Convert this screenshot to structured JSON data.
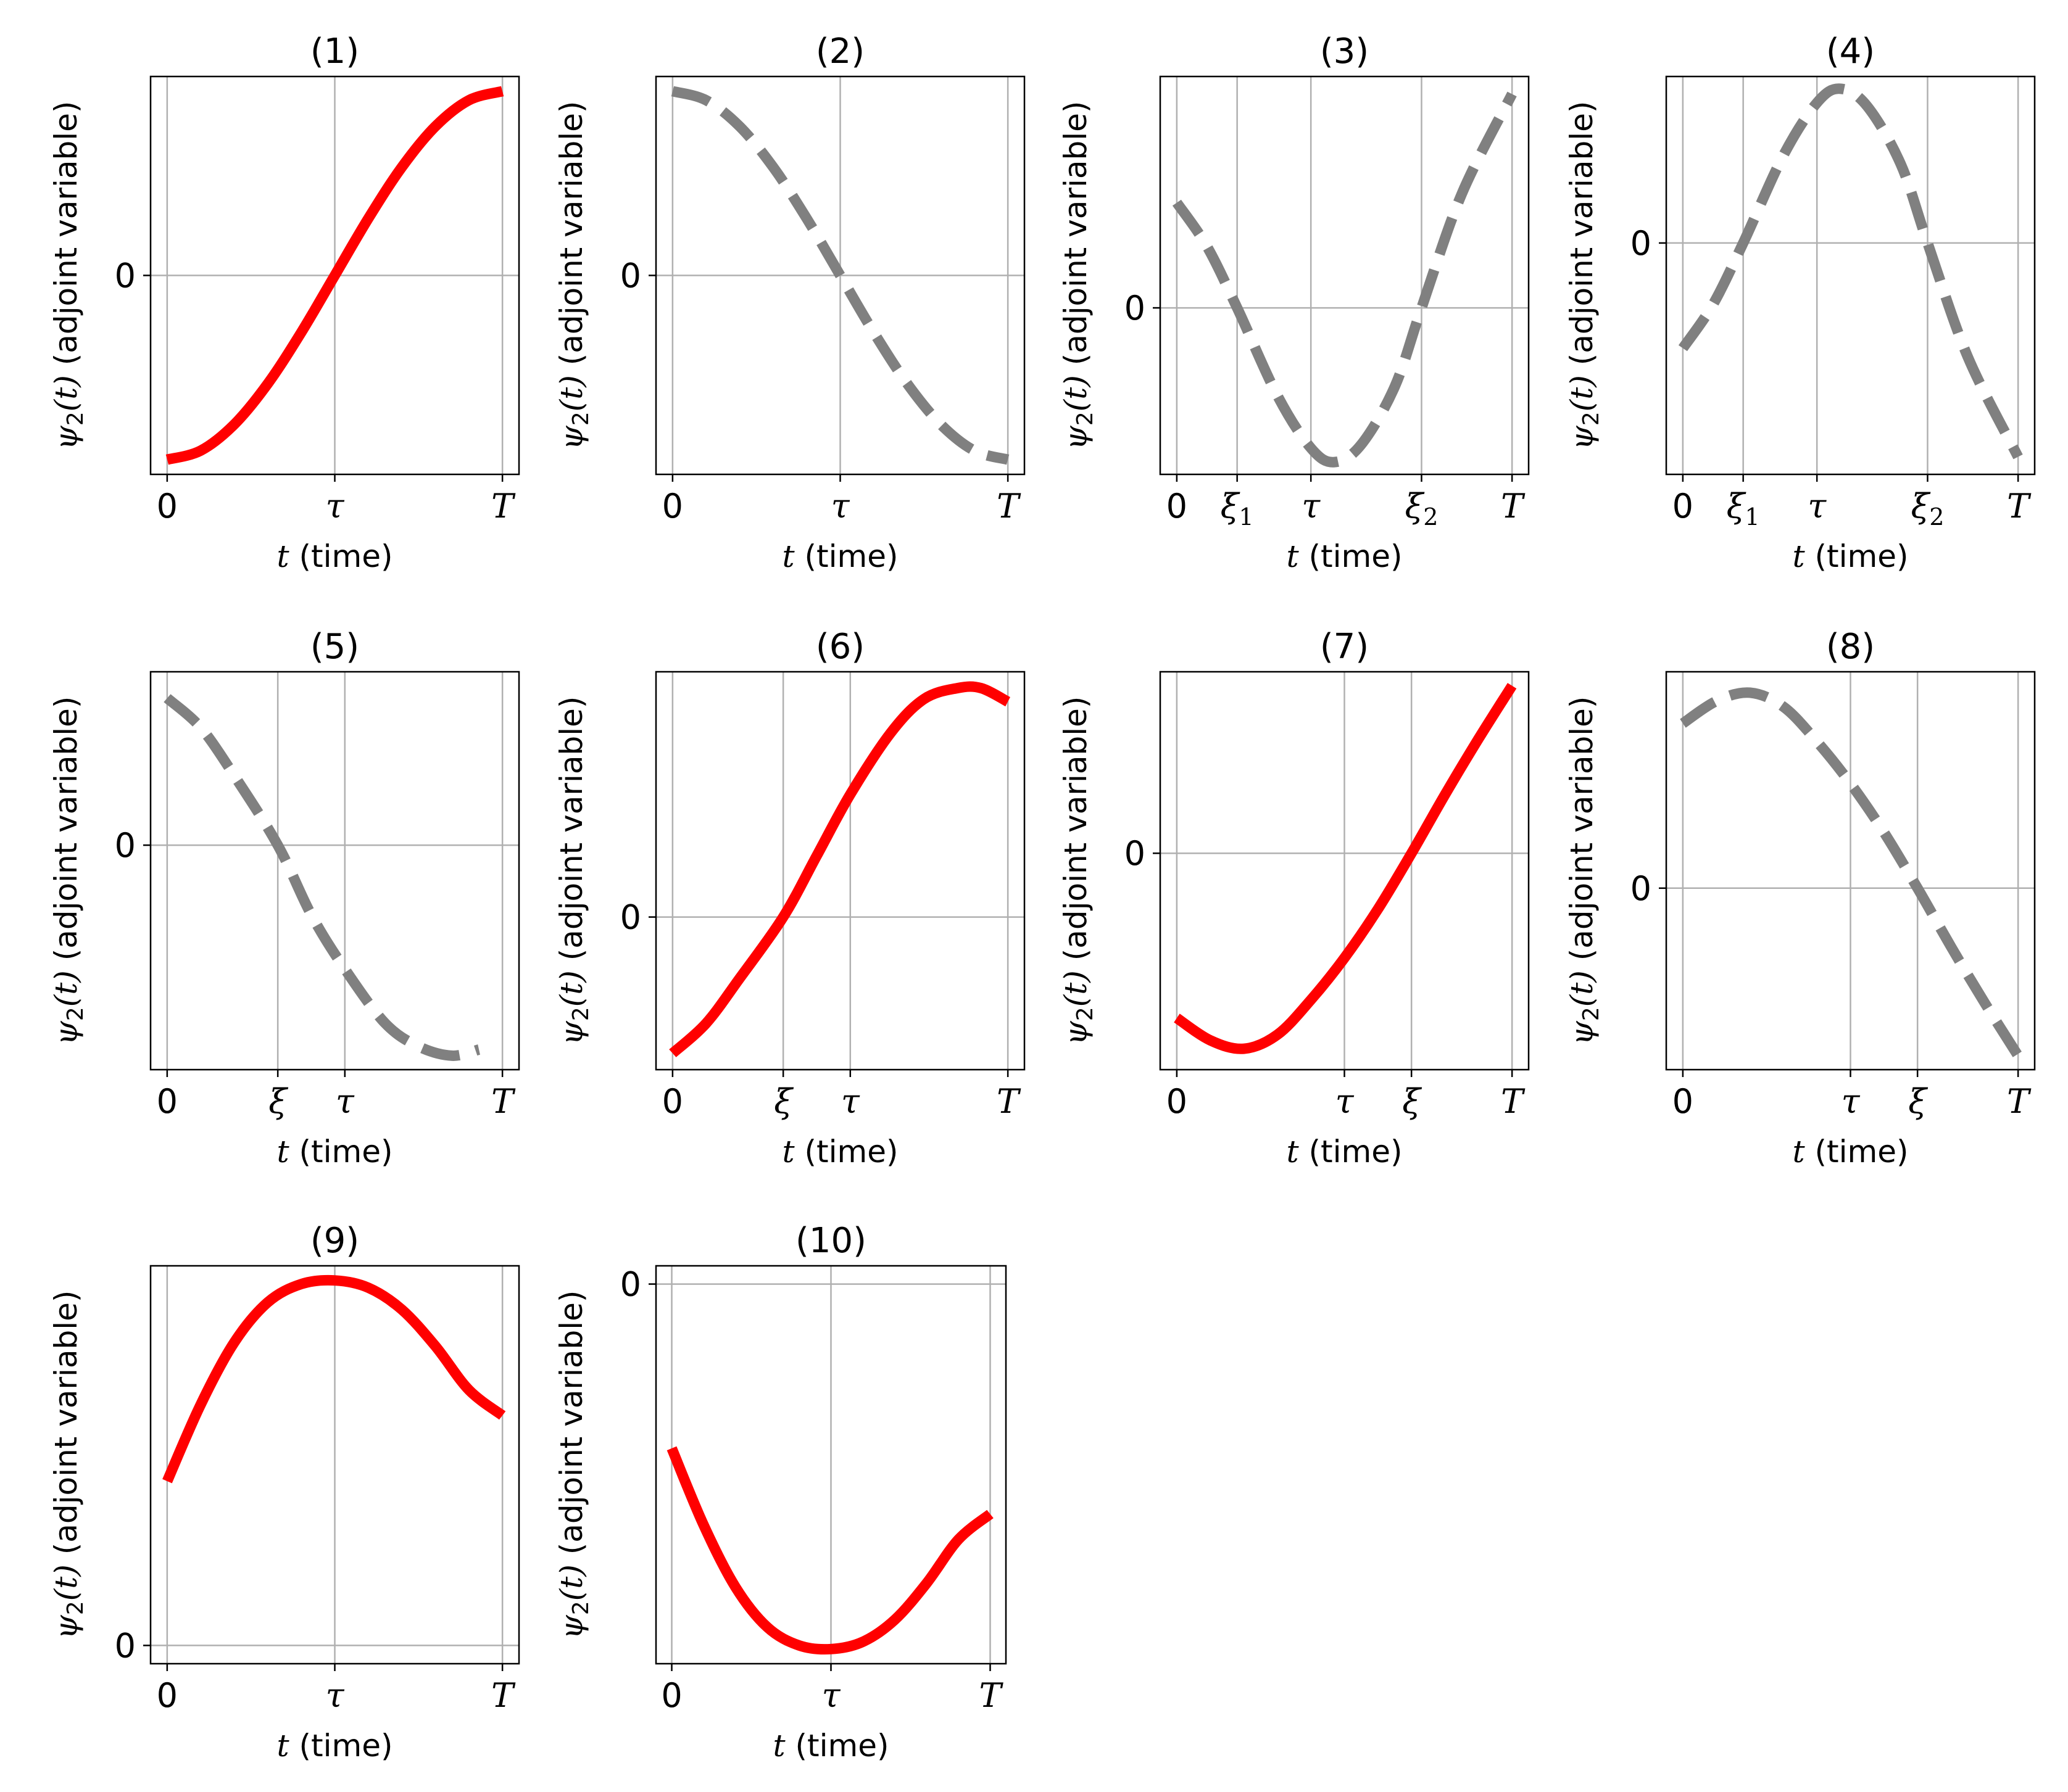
{
  "figure": {
    "colors": {
      "solid": "#ff0000",
      "dashed": "#808080",
      "grid": "#b0b0b0",
      "axis": "#000000"
    }
  },
  "labels": {
    "xlabel_var": "t",
    "xlabel_rest": " (time)",
    "ylabel_var": "ψ",
    "ylabel_sub": "2",
    "ylabel_arg": "(t)",
    "ylabel_rest": " (adjoint variable)"
  },
  "chart_data": [
    {
      "title": "(1)",
      "type": "line",
      "style": "solid",
      "xticks": [
        {
          "x": 0,
          "label": "0"
        },
        {
          "x": 0.5,
          "label": "τ"
        },
        {
          "x": 1,
          "label": "T"
        }
      ],
      "yzero": true,
      "ylim": [
        -1.08,
        1.08
      ],
      "points": [
        [
          0,
          -1
        ],
        [
          0.1,
          -0.951
        ],
        [
          0.2,
          -0.809
        ],
        [
          0.3,
          -0.588
        ],
        [
          0.4,
          -0.309
        ],
        [
          0.5,
          0
        ],
        [
          0.6,
          0.309
        ],
        [
          0.7,
          0.588
        ],
        [
          0.8,
          0.809
        ],
        [
          0.9,
          0.951
        ],
        [
          1,
          1
        ]
      ]
    },
    {
      "title": "(2)",
      "type": "line",
      "style": "dashed",
      "xticks": [
        {
          "x": 0,
          "label": "0"
        },
        {
          "x": 0.5,
          "label": "τ"
        },
        {
          "x": 1,
          "label": "T"
        }
      ],
      "yzero": true,
      "ylim": [
        -1.08,
        1.08
      ],
      "points": [
        [
          0,
          1
        ],
        [
          0.1,
          0.951
        ],
        [
          0.2,
          0.809
        ],
        [
          0.3,
          0.588
        ],
        [
          0.4,
          0.309
        ],
        [
          0.5,
          0
        ],
        [
          0.6,
          -0.309
        ],
        [
          0.7,
          -0.588
        ],
        [
          0.8,
          -0.809
        ],
        [
          0.9,
          -0.951
        ],
        [
          1,
          -1
        ]
      ]
    },
    {
      "title": "(3)",
      "type": "line",
      "style": "dashed",
      "xticks": [
        {
          "x": 0,
          "label": "0"
        },
        {
          "x": 0.18,
          "label": "ξ",
          "sub": "1"
        },
        {
          "x": 0.4,
          "label": "τ"
        },
        {
          "x": 0.73,
          "label": "ξ",
          "sub": "2"
        },
        {
          "x": 1,
          "label": "T"
        }
      ],
      "yzero": true,
      "ylim": [
        -0.95,
        1.32
      ],
      "points": [
        [
          0,
          0.6
        ],
        [
          0.09,
          0.35
        ],
        [
          0.18,
          0
        ],
        [
          0.3,
          -0.5
        ],
        [
          0.4,
          -0.8
        ],
        [
          0.47,
          -0.88
        ],
        [
          0.55,
          -0.78
        ],
        [
          0.65,
          -0.45
        ],
        [
          0.73,
          0
        ],
        [
          0.85,
          0.65
        ],
        [
          1,
          1.22
        ]
      ]
    },
    {
      "title": "(4)",
      "type": "line",
      "style": "dashed",
      "xticks": [
        {
          "x": 0,
          "label": "0"
        },
        {
          "x": 0.18,
          "label": "ξ",
          "sub": "1"
        },
        {
          "x": 0.4,
          "label": "τ"
        },
        {
          "x": 0.73,
          "label": "ξ",
          "sub": "2"
        },
        {
          "x": 1,
          "label": "T"
        }
      ],
      "yzero": true,
      "ylim": [
        -1.32,
        0.95
      ],
      "points": [
        [
          0,
          -0.6
        ],
        [
          0.09,
          -0.35
        ],
        [
          0.18,
          0
        ],
        [
          0.3,
          0.5
        ],
        [
          0.4,
          0.8
        ],
        [
          0.47,
          0.88
        ],
        [
          0.55,
          0.78
        ],
        [
          0.65,
          0.45
        ],
        [
          0.73,
          0
        ],
        [
          0.85,
          -0.65
        ],
        [
          1,
          -1.22
        ]
      ]
    },
    {
      "title": "(5)",
      "type": "line",
      "style": "dashed",
      "xticks": [
        {
          "x": 0,
          "label": "0"
        },
        {
          "x": 0.33,
          "label": "ξ"
        },
        {
          "x": 0.53,
          "label": "τ"
        },
        {
          "x": 1,
          "label": "T"
        }
      ],
      "yzero": true,
      "ylim": [
        -1.45,
        1.12
      ],
      "points": [
        [
          0,
          0.95
        ],
        [
          0.1,
          0.76
        ],
        [
          0.2,
          0.45
        ],
        [
          0.33,
          0
        ],
        [
          0.43,
          -0.45
        ],
        [
          0.53,
          -0.8
        ],
        [
          0.65,
          -1.15
        ],
        [
          0.75,
          -1.3
        ],
        [
          0.85,
          -1.36
        ],
        [
          0.93,
          -1.32
        ]
      ]
    },
    {
      "title": "(6)",
      "type": "line",
      "style": "solid",
      "xticks": [
        {
          "x": 0,
          "label": "0"
        },
        {
          "x": 0.33,
          "label": "ξ"
        },
        {
          "x": 0.53,
          "label": "τ"
        },
        {
          "x": 1,
          "label": "T"
        }
      ],
      "yzero": true,
      "ylim": [
        -1.12,
        1.8
      ],
      "points": [
        [
          0,
          -1
        ],
        [
          0.1,
          -0.78
        ],
        [
          0.2,
          -0.45
        ],
        [
          0.33,
          0
        ],
        [
          0.43,
          0.45
        ],
        [
          0.53,
          0.9
        ],
        [
          0.65,
          1.35
        ],
        [
          0.75,
          1.6
        ],
        [
          0.85,
          1.68
        ],
        [
          0.92,
          1.68
        ],
        [
          1,
          1.58
        ]
      ]
    },
    {
      "title": "(7)",
      "type": "line",
      "style": "solid",
      "xticks": [
        {
          "x": 0,
          "label": "0"
        },
        {
          "x": 0.5,
          "label": "τ"
        },
        {
          "x": 0.7,
          "label": "ξ"
        },
        {
          "x": 1,
          "label": "T"
        }
      ],
      "yzero": true,
      "ylim": [
        -1.55,
        1.3
      ],
      "points": [
        [
          0,
          -1.18
        ],
        [
          0.1,
          -1.34
        ],
        [
          0.2,
          -1.4
        ],
        [
          0.3,
          -1.3
        ],
        [
          0.4,
          -1.05
        ],
        [
          0.5,
          -0.75
        ],
        [
          0.6,
          -0.4
        ],
        [
          0.7,
          0
        ],
        [
          0.8,
          0.42
        ],
        [
          0.9,
          0.82
        ],
        [
          1,
          1.2
        ]
      ]
    },
    {
      "title": "(8)",
      "type": "line",
      "style": "dashed",
      "xticks": [
        {
          "x": 0,
          "label": "0"
        },
        {
          "x": 0.5,
          "label": "τ"
        },
        {
          "x": 0.7,
          "label": "ξ"
        },
        {
          "x": 1,
          "label": "T"
        }
      ],
      "yzero": true,
      "ylim": [
        -1.3,
        1.55
      ],
      "points": [
        [
          0,
          1.18
        ],
        [
          0.1,
          1.34
        ],
        [
          0.2,
          1.4
        ],
        [
          0.3,
          1.3
        ],
        [
          0.4,
          1.05
        ],
        [
          0.5,
          0.75
        ],
        [
          0.6,
          0.4
        ],
        [
          0.7,
          0
        ],
        [
          0.8,
          -0.42
        ],
        [
          0.9,
          -0.82
        ],
        [
          1,
          -1.2
        ]
      ]
    },
    {
      "title": "(9)",
      "type": "line",
      "style": "solid",
      "xticks": [
        {
          "x": 0,
          "label": "0"
        },
        {
          "x": 0.5,
          "label": "τ"
        },
        {
          "x": 1,
          "label": "T"
        }
      ],
      "yzero": true,
      "ylim": [
        -0.05,
        1.04
      ],
      "points": [
        [
          0,
          0.45
        ],
        [
          0.1,
          0.66
        ],
        [
          0.2,
          0.83
        ],
        [
          0.3,
          0.94
        ],
        [
          0.4,
          0.99
        ],
        [
          0.5,
          1.0
        ],
        [
          0.6,
          0.98
        ],
        [
          0.7,
          0.92
        ],
        [
          0.8,
          0.82
        ],
        [
          0.9,
          0.7
        ],
        [
          1,
          0.63
        ]
      ]
    },
    {
      "title": "(10)",
      "type": "line",
      "style": "solid",
      "xticks": [
        {
          "x": 0,
          "label": "0"
        },
        {
          "x": 0.5,
          "label": "τ"
        },
        {
          "x": 1,
          "label": "T"
        }
      ],
      "yzero": true,
      "ylim": [
        -1.04,
        0.05
      ],
      "points": [
        [
          0,
          -0.45
        ],
        [
          0.1,
          -0.66
        ],
        [
          0.2,
          -0.83
        ],
        [
          0.3,
          -0.94
        ],
        [
          0.4,
          -0.99
        ],
        [
          0.5,
          -1.0
        ],
        [
          0.6,
          -0.98
        ],
        [
          0.7,
          -0.92
        ],
        [
          0.8,
          -0.82
        ],
        [
          0.9,
          -0.7
        ],
        [
          1,
          -0.63
        ]
      ]
    }
  ]
}
